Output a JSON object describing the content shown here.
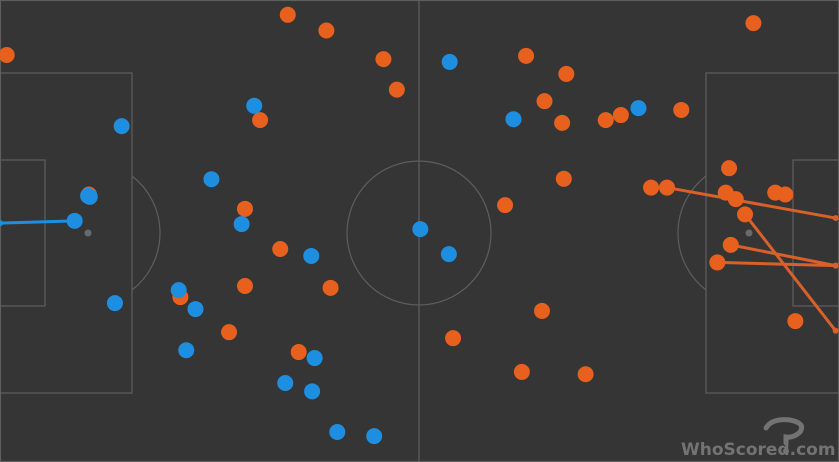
{
  "watermark": {
    "text": "WhoScored.com",
    "icon": "whoscored-logo-icon"
  },
  "colors": {
    "pitch_background": "#353535",
    "pitch_lines": "#5e5e5e",
    "home_team": "#1e8fe0",
    "away_team": "#e8601e",
    "away_team_line": "#d8602a",
    "home_team_line": "#1e8fe0",
    "penalty_spot": "#6a6a6a",
    "watermark": "#7a7a7a"
  },
  "chart_data": {
    "type": "scatter",
    "x_range": [
      0,
      100
    ],
    "y_range": [
      0,
      100
    ],
    "series": [
      {
        "team": "home",
        "color": "#1e8fe0",
        "points": [
          {
            "x": 53.6,
            "y": 86.6
          },
          {
            "x": 30.3,
            "y": 77.1
          },
          {
            "x": 61.2,
            "y": 74.2
          },
          {
            "x": 76.1,
            "y": 76.6
          },
          {
            "x": 14.5,
            "y": 72.7
          },
          {
            "x": 25.2,
            "y": 61.2
          },
          {
            "x": 10.7,
            "y": 57.4
          },
          {
            "x": 28.8,
            "y": 51.5
          },
          {
            "x": 50.1,
            "y": 50.4
          },
          {
            "x": 53.5,
            "y": 45.0
          },
          {
            "x": 37.1,
            "y": 44.6
          },
          {
            "x": 8.9,
            "y": 52.2
          },
          {
            "x": 21.3,
            "y": 37.2
          },
          {
            "x": 23.3,
            "y": 33.1
          },
          {
            "x": 13.7,
            "y": 34.4
          },
          {
            "x": 22.2,
            "y": 24.2
          },
          {
            "x": 37.5,
            "y": 22.5
          },
          {
            "x": 34.0,
            "y": 17.1
          },
          {
            "x": 37.2,
            "y": 15.3
          },
          {
            "x": 40.2,
            "y": 6.5
          },
          {
            "x": 44.6,
            "y": 5.6
          },
          {
            "x": 10.5,
            "y": 57.6
          }
        ]
      },
      {
        "team": "away",
        "color": "#e8601e",
        "points": [
          {
            "x": 34.3,
            "y": 96.8
          },
          {
            "x": 38.9,
            "y": 93.4
          },
          {
            "x": 0.8,
            "y": 88.1
          },
          {
            "x": 45.7,
            "y": 87.2
          },
          {
            "x": 47.3,
            "y": 80.6
          },
          {
            "x": 31.0,
            "y": 74.0
          },
          {
            "x": 62.7,
            "y": 87.9
          },
          {
            "x": 67.5,
            "y": 84.0
          },
          {
            "x": 64.9,
            "y": 78.1
          },
          {
            "x": 67.0,
            "y": 73.4
          },
          {
            "x": 72.2,
            "y": 74.0
          },
          {
            "x": 74.0,
            "y": 75.1
          },
          {
            "x": 81.2,
            "y": 76.2
          },
          {
            "x": 89.8,
            "y": 95.0
          },
          {
            "x": 67.2,
            "y": 61.3
          },
          {
            "x": 60.2,
            "y": 55.6
          },
          {
            "x": 77.6,
            "y": 59.4
          },
          {
            "x": 79.5,
            "y": 59.4
          },
          {
            "x": 86.9,
            "y": 63.6
          },
          {
            "x": 86.5,
            "y": 58.3
          },
          {
            "x": 87.7,
            "y": 56.9
          },
          {
            "x": 88.8,
            "y": 53.6
          },
          {
            "x": 92.4,
            "y": 58.3
          },
          {
            "x": 93.6,
            "y": 57.9
          },
          {
            "x": 87.1,
            "y": 47.0
          },
          {
            "x": 85.5,
            "y": 43.2
          },
          {
            "x": 10.6,
            "y": 57.9
          },
          {
            "x": 29.2,
            "y": 54.8
          },
          {
            "x": 33.4,
            "y": 46.1
          },
          {
            "x": 29.2,
            "y": 38.1
          },
          {
            "x": 39.4,
            "y": 37.7
          },
          {
            "x": 21.5,
            "y": 35.7
          },
          {
            "x": 27.3,
            "y": 28.1
          },
          {
            "x": 35.6,
            "y": 23.8
          },
          {
            "x": 64.6,
            "y": 32.7
          },
          {
            "x": 54.0,
            "y": 26.8
          },
          {
            "x": 62.2,
            "y": 19.5
          },
          {
            "x": 69.8,
            "y": 19.0
          },
          {
            "x": 94.8,
            "y": 30.5
          }
        ]
      }
    ],
    "passes": [
      {
        "team": "home",
        "from": {
          "x": 8.9,
          "y": 52.2
        },
        "to": {
          "x": 0.0,
          "y": 51.7
        }
      },
      {
        "team": "away",
        "from": {
          "x": 79.5,
          "y": 59.4
        },
        "to": {
          "x": 99.6,
          "y": 52.8
        }
      },
      {
        "team": "away",
        "from": {
          "x": 88.8,
          "y": 53.6
        },
        "to": {
          "x": 99.6,
          "y": 28.4
        }
      },
      {
        "team": "away",
        "from": {
          "x": 87.1,
          "y": 47.0
        },
        "to": {
          "x": 99.6,
          "y": 42.5
        }
      },
      {
        "team": "away",
        "from": {
          "x": 85.5,
          "y": 43.2
        },
        "to": {
          "x": 99.6,
          "y": 42.5
        }
      }
    ]
  }
}
